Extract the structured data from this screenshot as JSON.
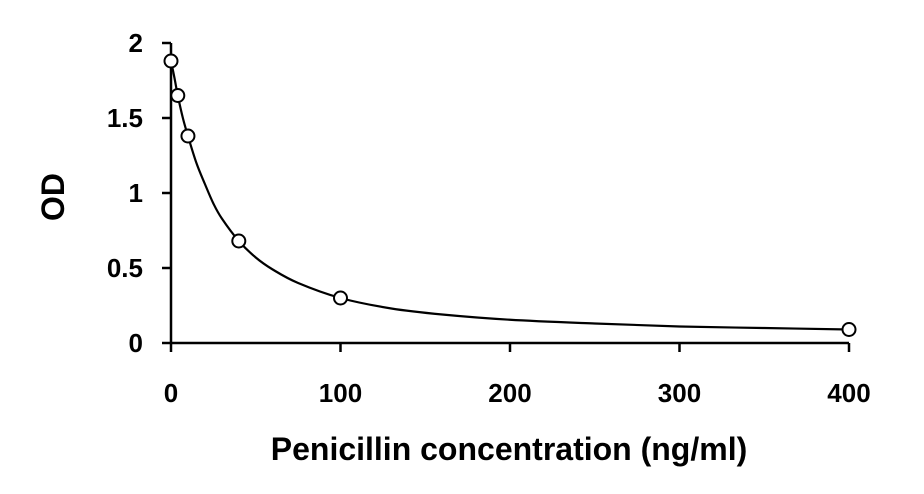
{
  "chart_data": {
    "type": "scatter",
    "title": "",
    "xlabel": "Penicillin concentration (ng/ml)",
    "ylabel": "OD",
    "xlim": [
      0,
      400
    ],
    "ylim": [
      0,
      2
    ],
    "xticks": [
      0,
      100,
      200,
      300,
      400
    ],
    "yticks": [
      0,
      0.5,
      1,
      1.5,
      2
    ],
    "xtick_labels": [
      "0",
      "100",
      "200",
      "300",
      "400"
    ],
    "ytick_labels": [
      "0",
      "0.5",
      "1",
      "1.5",
      "2"
    ],
    "grid": false,
    "legend": "none",
    "series": [
      {
        "marker": "open-circle",
        "x": [
          0,
          4,
          10,
          40,
          100,
          400
        ],
        "y": [
          1.88,
          1.65,
          1.38,
          0.68,
          0.3,
          0.09
        ]
      }
    ],
    "fit_curve": {
      "style": "smooth solid line through points",
      "x": [
        0,
        2,
        4,
        7,
        10,
        15,
        20,
        25,
        30,
        40,
        50,
        60,
        75,
        100,
        130,
        160,
        200,
        250,
        300,
        350,
        400
      ],
      "y": [
        1.88,
        1.77,
        1.65,
        1.5,
        1.38,
        1.2,
        1.06,
        0.93,
        0.83,
        0.68,
        0.57,
        0.49,
        0.4,
        0.3,
        0.23,
        0.19,
        0.155,
        0.13,
        0.11,
        0.1,
        0.09
      ]
    },
    "colors": {
      "line": "#000000",
      "marker_stroke": "#000000",
      "background": "#ffffff"
    }
  }
}
